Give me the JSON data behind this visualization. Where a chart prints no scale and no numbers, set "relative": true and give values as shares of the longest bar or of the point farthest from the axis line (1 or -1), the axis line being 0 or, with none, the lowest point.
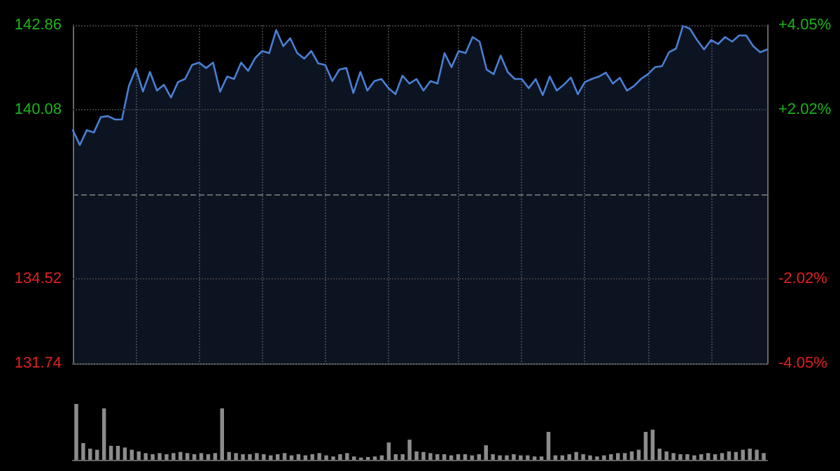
{
  "chart_data": [
    {
      "type": "area",
      "categories": [
        null,
        null,
        null,
        null,
        null,
        null,
        null,
        null,
        null,
        null,
        null,
        null,
        null,
        null,
        null,
        null,
        null,
        null,
        null,
        null,
        null,
        null,
        null,
        null,
        null,
        null,
        null,
        null,
        null,
        null,
        null,
        null,
        null,
        null,
        null,
        null,
        null,
        null,
        null,
        null,
        null,
        null,
        null,
        null,
        null,
        null,
        null,
        null,
        null,
        null,
        null,
        null,
        null,
        null,
        null,
        null,
        null,
        null,
        null,
        null,
        null,
        null,
        null,
        null,
        null,
        null,
        null,
        null,
        null,
        null,
        null,
        null,
        null,
        null,
        null,
        null,
        null,
        null,
        null,
        null,
        null,
        null,
        null,
        null,
        null,
        null,
        null,
        null,
        null,
        null,
        null,
        null,
        null,
        null,
        null,
        null,
        null,
        null,
        null,
        null
      ],
      "values": [
        139.41,
        138.92,
        139.41,
        139.33,
        139.84,
        139.87,
        139.76,
        139.76,
        140.86,
        141.43,
        140.68,
        141.32,
        140.71,
        140.9,
        140.48,
        140.99,
        141.09,
        141.55,
        141.63,
        141.45,
        141.63,
        140.67,
        141.17,
        141.09,
        141.63,
        141.36,
        141.78,
        142.01,
        141.94,
        142.7,
        142.17,
        142.43,
        141.94,
        141.76,
        142.01,
        141.6,
        141.55,
        141.02,
        141.4,
        141.45,
        140.63,
        141.32,
        140.71,
        141.02,
        141.09,
        140.79,
        140.59,
        141.2,
        140.94,
        141.09,
        140.71,
        141.02,
        140.94,
        141.94,
        141.48,
        142.01,
        141.94,
        142.47,
        142.32,
        141.4,
        141.25,
        141.86,
        141.32,
        141.09,
        141.09,
        140.79,
        141.09,
        140.56,
        141.17,
        140.71,
        140.9,
        141.14,
        140.59,
        140.99,
        141.09,
        141.17,
        141.3,
        140.94,
        141.13,
        140.71,
        140.86,
        141.09,
        141.25,
        141.48,
        141.51,
        141.97,
        142.09,
        142.84,
        142.74,
        142.37,
        142.06,
        142.37,
        142.24,
        142.47,
        142.32,
        142.52,
        142.52,
        142.17,
        141.97,
        142.06
      ],
      "color": "#4a7fd4",
      "ylim": [
        131.74,
        142.86
      ],
      "yticks": [
        131.74,
        134.52,
        140.08,
        142.86
      ],
      "ref_lines": [
        {
          "axis": "y",
          "value": 137.3,
          "line_style": "dashed"
        }
      ],
      "y2lim": [
        -4.05,
        4.05
      ],
      "y2ticks": [
        {
          "value": -4.05,
          "label": "-4.05%"
        },
        {
          "value": -2.02,
          "label": "-2.02%"
        },
        {
          "value": 2.02,
          "label": "+2.02%"
        },
        {
          "value": 4.05,
          "label": "+4.05%"
        }
      ],
      "tick_labels": "y",
      "grid": true,
      "line_style": "solid"
    },
    {
      "type": "bar",
      "relative": true,
      "color": "#8c8c8c",
      "categories": [
        null,
        null,
        null,
        null,
        null,
        null,
        null,
        null,
        null,
        null,
        null,
        null,
        null,
        null,
        null,
        null,
        null,
        null,
        null,
        null,
        null,
        null,
        null,
        null,
        null,
        null,
        null,
        null,
        null,
        null,
        null,
        null,
        null,
        null,
        null,
        null,
        null,
        null,
        null,
        null,
        null,
        null,
        null,
        null,
        null,
        null,
        null,
        null,
        null,
        null,
        null,
        null,
        null,
        null,
        null,
        null,
        null,
        null,
        null,
        null,
        null,
        null,
        null,
        null,
        null,
        null,
        null,
        null,
        null,
        null,
        null,
        null,
        null,
        null,
        null,
        null,
        null,
        null,
        null,
        null,
        null,
        null,
        null,
        null,
        null,
        null,
        null,
        null,
        null,
        null,
        null,
        null,
        null,
        null,
        null,
        null,
        null,
        null,
        null,
        null
      ],
      "values": [
        1,
        0.3,
        0.2,
        0.18,
        0.92,
        0.25,
        0.25,
        0.22,
        0.18,
        0.15,
        0.12,
        0.1,
        0.12,
        0.1,
        0.12,
        0.14,
        0.12,
        0.1,
        0.12,
        0.1,
        0.12,
        0.92,
        0.14,
        0.12,
        0.1,
        0.1,
        0.12,
        0.1,
        0.08,
        0.1,
        0.12,
        0.08,
        0.1,
        0.08,
        0.1,
        0.12,
        0.08,
        0.06,
        0.1,
        0.12,
        0.06,
        0.04,
        0.05,
        0.06,
        0.08,
        0.31,
        0.1,
        0.1,
        0.36,
        0.15,
        0.14,
        0.12,
        0.1,
        0.1,
        0.08,
        0.1,
        0.1,
        0.08,
        0.1,
        0.26,
        0.1,
        0.08,
        0.08,
        0.1,
        0.08,
        0.08,
        0.06,
        0.06,
        0.5,
        0.08,
        0.08,
        0.1,
        0.14,
        0.1,
        0.08,
        0.06,
        0.08,
        0.1,
        0.12,
        0.12,
        0.15,
        0.18,
        0.5,
        0.54,
        0.2,
        0.15,
        0.12,
        0.1,
        0.1,
        0.08,
        0.1,
        0.12,
        0.1,
        0.12,
        0.15,
        0.14,
        0.18,
        0.2,
        0.18,
        0.12
      ]
    }
  ]
}
